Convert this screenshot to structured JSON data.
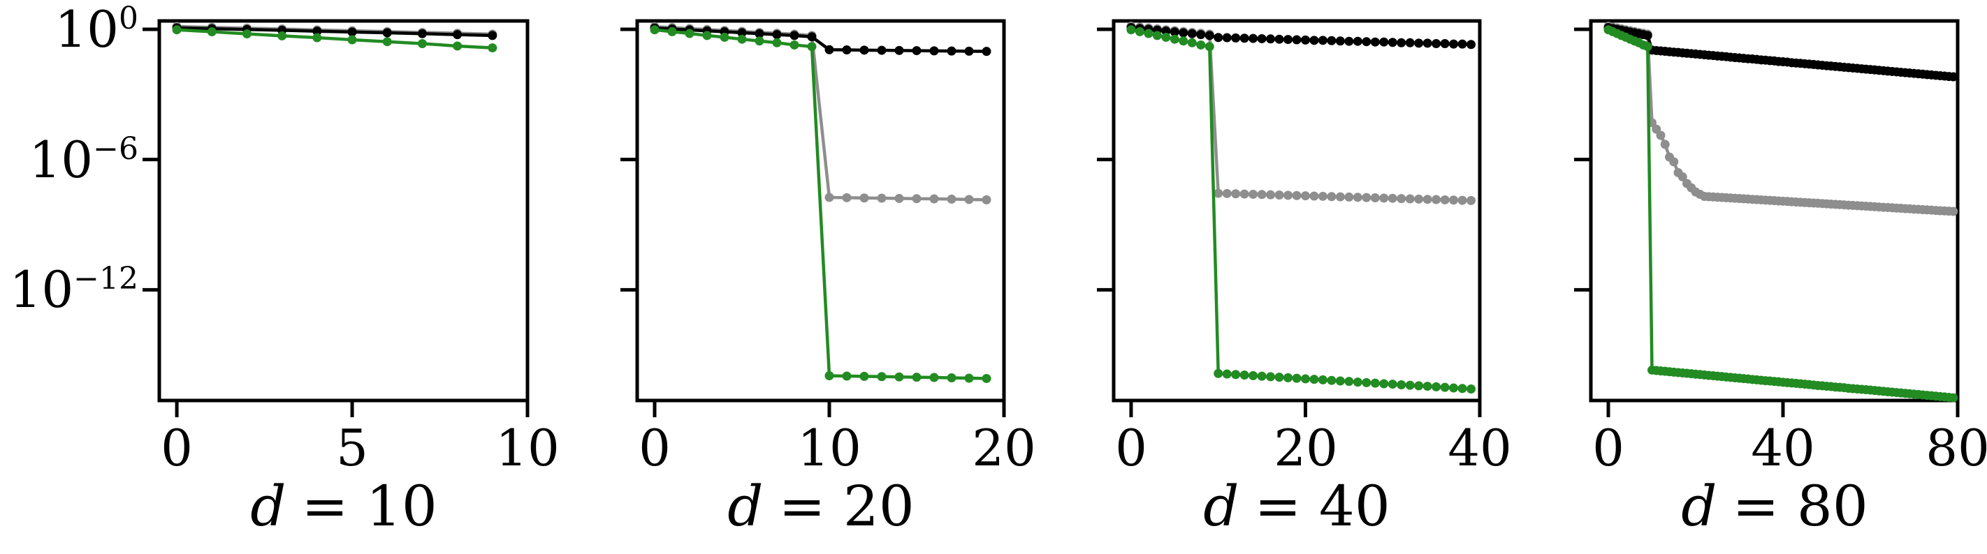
{
  "colors": {
    "axis": "#000000",
    "background": "#ffffff",
    "series_black": "#000000",
    "series_gray": "#8e8e8e",
    "series_green": "#228B22"
  },
  "y_axis": {
    "scale": "log",
    "tick_exponents": [
      0,
      -6,
      -12
    ],
    "labels": [
      {
        "base": "10",
        "exp": "0"
      },
      {
        "base": "10",
        "exp": "−6"
      },
      {
        "base": "10",
        "exp": "−12"
      }
    ]
  },
  "panels": [
    {
      "title_var": "d",
      "title_eq": "= 10",
      "xtick_labels": [
        "0",
        "5",
        "10"
      ]
    },
    {
      "title_var": "d",
      "title_eq": "= 20",
      "xtick_labels": [
        "0",
        "10",
        "20"
      ]
    },
    {
      "title_var": "d",
      "title_eq": "= 40",
      "xtick_labels": [
        "0",
        "20",
        "40"
      ]
    },
    {
      "title_var": "d",
      "title_eq": "= 80",
      "xtick_labels": [
        "0",
        "40",
        "80"
      ]
    }
  ],
  "chart_data": [
    {
      "type": "line",
      "title": "d = 10",
      "ylog": true,
      "ylim_log10": [
        -17.1,
        0.386
      ],
      "xlim": [
        -0.5,
        10
      ],
      "xticks": [
        0,
        5,
        10
      ],
      "x_start": 0,
      "x_step": 1,
      "count": 10,
      "series": [
        {
          "name": "gray",
          "color": "#8e8e8e",
          "values": [
            1.35,
            1.23,
            1.13,
            1.04,
            0.94,
            0.86,
            0.79,
            0.72,
            0.66,
            0.6
          ]
        },
        {
          "name": "black",
          "color": "#000000",
          "values": [
            1.17,
            1.07,
            0.98,
            0.9,
            0.82,
            0.75,
            0.69,
            0.63,
            0.57,
            0.52
          ]
        },
        {
          "name": "green",
          "color": "#228B22",
          "values": [
            0.95,
            0.77,
            0.62,
            0.5,
            0.41,
            0.33,
            0.27,
            0.22,
            0.17,
            0.14
          ]
        }
      ]
    },
    {
      "type": "line",
      "title": "d = 20",
      "ylog": true,
      "ylim_log10": [
        -17.1,
        0.386
      ],
      "xlim": [
        -1,
        20
      ],
      "xticks": [
        0,
        10,
        20
      ],
      "x_start": 0,
      "x_step": 1,
      "count": 20,
      "series": [
        {
          "name": "gray",
          "color": "#8e8e8e",
          "values": [
            1.32,
            1.2,
            1.08,
            0.98,
            0.89,
            0.8,
            0.72,
            0.66,
            0.6,
            0.52,
            1.8e-08,
            1.75e-08,
            1.7e-08,
            1.66e-08,
            1.62e-08,
            1.58e-08,
            1.54e-08,
            1.5e-08,
            1.45e-08,
            1.4e-08
          ]
        },
        {
          "name": "black",
          "color": "#000000",
          "values": [
            1.15,
            1.04,
            0.94,
            0.85,
            0.77,
            0.7,
            0.63,
            0.57,
            0.52,
            0.45,
            0.115,
            0.113,
            0.11,
            0.108,
            0.106,
            0.104,
            0.102,
            0.1,
            0.098,
            0.096
          ]
        },
        {
          "name": "green",
          "color": "#228B22",
          "values": [
            0.95,
            0.78,
            0.64,
            0.52,
            0.43,
            0.35,
            0.29,
            0.24,
            0.19,
            0.16,
            1.1e-16,
            1.06e-16,
            1.03e-16,
            1e-16,
            9.7e-17,
            9.4e-17,
            9.1e-17,
            8.8e-17,
            8.5e-17,
            8.2e-17
          ]
        }
      ]
    },
    {
      "type": "line",
      "title": "d = 40",
      "ylog": true,
      "ylim_log10": [
        -17.1,
        0.386
      ],
      "xlim": [
        -2,
        40
      ],
      "xticks": [
        0,
        20,
        40
      ],
      "x_start": 0,
      "x_step": 1,
      "count": 40,
      "series": [
        {
          "name": "gray",
          "color": "#8e8e8e",
          "values": [
            1.38,
            1.25,
            1.15,
            1.05,
            0.95,
            0.87,
            0.79,
            0.72,
            0.66,
            0.6,
            2.8e-08,
            2.73e-08,
            2.65e-08,
            2.58e-08,
            2.51e-08,
            2.45e-08,
            2.38e-08,
            2.32e-08,
            2.26e-08,
            2.2e-08,
            2.14e-08,
            2.08e-08,
            2.03e-08,
            1.97e-08,
            1.92e-08,
            1.87e-08,
            1.82e-08,
            1.77e-08,
            1.73e-08,
            1.68e-08,
            1.64e-08,
            1.59e-08,
            1.55e-08,
            1.51e-08,
            1.47e-08,
            1.43e-08,
            1.39e-08,
            1.36e-08,
            1.32e-08,
            1.3e-08
          ]
        },
        {
          "name": "black",
          "color": "#000000",
          "values": [
            1.2,
            1.09,
            1.0,
            0.91,
            0.83,
            0.76,
            0.69,
            0.63,
            0.57,
            0.52,
            0.42,
            0.41,
            0.4,
            0.39,
            0.38,
            0.37,
            0.36,
            0.35,
            0.34,
            0.33,
            0.32,
            0.31,
            0.31,
            0.3,
            0.29,
            0.28,
            0.28,
            0.27,
            0.26,
            0.26,
            0.25,
            0.24,
            0.24,
            0.23,
            0.23,
            0.22,
            0.22,
            0.21,
            0.21,
            0.2
          ]
        },
        {
          "name": "green",
          "color": "#228B22",
          "values": [
            0.95,
            0.78,
            0.64,
            0.52,
            0.43,
            0.35,
            0.29,
            0.24,
            0.19,
            0.16,
            1.4e-16,
            1.32e-16,
            1.25e-16,
            1.18e-16,
            1.11e-16,
            1.05e-16,
            9.9e-17,
            9.4e-17,
            8.9e-17,
            8.4e-17,
            7.9e-17,
            7.5e-17,
            7.1e-17,
            6.7e-17,
            6.3e-17,
            6e-17,
            5.6e-17,
            5.3e-17,
            5e-17,
            4.7e-17,
            4.5e-17,
            4.2e-17,
            4e-17,
            3.8e-17,
            3.6e-17,
            3.4e-17,
            3.2e-17,
            3e-17,
            2.85e-17,
            2.7e-17
          ]
        }
      ]
    },
    {
      "type": "line",
      "title": "d = 80",
      "ylog": true,
      "ylim_log10": [
        -17.1,
        0.386
      ],
      "xlim": [
        -4,
        80
      ],
      "xticks": [
        0,
        40,
        80
      ],
      "x_start": 0,
      "x_step": 1,
      "count": 80,
      "series": [
        {
          "name": "gray",
          "color": "#8e8e8e",
          "values": [
            1.38,
            1.25,
            1.15,
            1.05,
            0.95,
            0.86,
            0.79,
            0.72,
            0.66,
            0.6,
            5e-05,
            2.5e-05,
            1.3e-05,
            5e-06,
            1.3e-06,
            7.9e-07,
            2.5e-07,
            1.6e-07,
            7.9e-08,
            5e-08,
            3.2e-08,
            2.5e-08,
            2e-08,
            1.95e-08,
            1.9e-08,
            1.84e-08,
            1.79e-08,
            1.74e-08,
            1.7e-08,
            1.65e-08,
            1.6e-08,
            1.56e-08,
            1.52e-08,
            1.47e-08,
            1.43e-08,
            1.39e-08,
            1.35e-08,
            1.32e-08,
            1.28e-08,
            1.24e-08,
            1.21e-08,
            1.18e-08,
            1.14e-08,
            1.11e-08,
            1.08e-08,
            1.05e-08,
            1.02e-08,
            9.9e-09,
            9.7e-09,
            9.4e-09,
            9.1e-09,
            8.9e-09,
            8.6e-09,
            8.4e-09,
            8.2e-09,
            7.9e-09,
            7.7e-09,
            7.5e-09,
            7.3e-09,
            7.1e-09,
            6.9e-09,
            6.7e-09,
            6.5e-09,
            6.3e-09,
            6.2e-09,
            6e-09,
            5.8e-09,
            5.7e-09,
            5.5e-09,
            5.4e-09,
            5.2e-09,
            5.1e-09,
            4.9e-09,
            4.8e-09,
            4.7e-09,
            4.5e-09,
            4.4e-09,
            4.3e-09,
            4.2e-09,
            4.1e-09
          ]
        },
        {
          "name": "black",
          "color": "#000000",
          "values": [
            1.2,
            1.09,
            1.0,
            0.91,
            0.83,
            0.75,
            0.69,
            0.63,
            0.57,
            0.52,
            0.11,
            0.105,
            0.101,
            0.097,
            0.093,
            0.089,
            0.086,
            0.082,
            0.079,
            0.076,
            0.073,
            0.07,
            0.067,
            0.064,
            0.062,
            0.059,
            0.057,
            0.055,
            0.052,
            0.05,
            0.048,
            0.046,
            0.044,
            0.043,
            0.041,
            0.039,
            0.038,
            0.036,
            0.035,
            0.033,
            0.032,
            0.031,
            0.029,
            0.028,
            0.027,
            0.026,
            0.025,
            0.024,
            0.023,
            0.022,
            0.021,
            0.0203,
            0.0195,
            0.0187,
            0.0179,
            0.0172,
            0.0165,
            0.0159,
            0.0152,
            0.0146,
            0.014,
            0.0135,
            0.0129,
            0.0124,
            0.0119,
            0.0114,
            0.011,
            0.0105,
            0.0101,
            0.0097,
            0.0093,
            0.0089,
            0.0086,
            0.0082,
            0.0079,
            0.0076,
            0.0073,
            0.007,
            0.0067,
            0.0065
          ]
        },
        {
          "name": "green",
          "color": "#228B22",
          "values": [
            0.95,
            0.78,
            0.64,
            0.52,
            0.43,
            0.35,
            0.29,
            0.24,
            0.19,
            0.16,
            2e-16,
            1.91e-16,
            1.83e-16,
            1.76e-16,
            1.68e-16,
            1.61e-16,
            1.54e-16,
            1.48e-16,
            1.42e-16,
            1.36e-16,
            1.3e-16,
            1.25e-16,
            1.19e-16,
            1.14e-16,
            1.1e-16,
            1.05e-16,
            1.01e-16,
            9.6e-17,
            9.2e-17,
            8.8e-17,
            8.5e-17,
            8.1e-17,
            7.8e-17,
            7.4e-17,
            7.1e-17,
            6.8e-17,
            6.5e-17,
            6.3e-17,
            6e-17,
            5.8e-17,
            5.5e-17,
            5.3e-17,
            5.1e-17,
            4.9e-17,
            4.7e-17,
            4.5e-17,
            4.3e-17,
            4.1e-17,
            3.9e-17,
            3.8e-17,
            3.6e-17,
            3.5e-17,
            3.3e-17,
            3.2e-17,
            3.1e-17,
            2.9e-17,
            2.8e-17,
            2.7e-17,
            2.6e-17,
            2.5e-17,
            2.4e-17,
            2.3e-17,
            2.2e-17,
            2.1e-17,
            2e-17,
            1.93e-17,
            1.85e-17,
            1.77e-17,
            1.7e-17,
            1.63e-17,
            1.56e-17,
            1.5e-17,
            1.43e-17,
            1.37e-17,
            1.32e-17,
            1.26e-17,
            1.21e-17,
            1.16e-17,
            1.11e-17,
            1.06e-17
          ]
        }
      ]
    }
  ]
}
